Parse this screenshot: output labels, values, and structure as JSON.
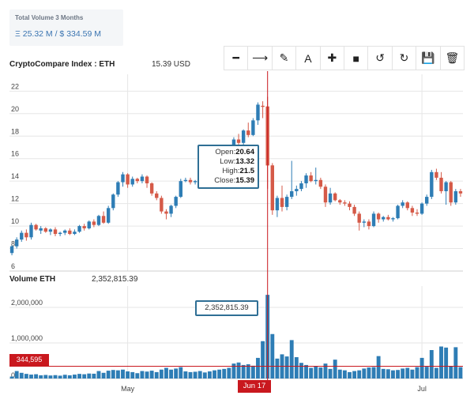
{
  "stats": {
    "total_volume_label": "Total Volume 3 Months",
    "total_volume_value": "Ξ 25.32 M / $ 334.59 M"
  },
  "header": {
    "index_title": "CryptoCompare Index : ETH",
    "index_price": "15.39 USD"
  },
  "toolbar": [
    {
      "name": "minus-icon",
      "glyph": "━"
    },
    {
      "name": "arrow-right-icon",
      "glyph": "⟶"
    },
    {
      "name": "pencil-icon",
      "glyph": "✎"
    },
    {
      "name": "text-icon",
      "glyph": "A"
    },
    {
      "name": "plus-icon",
      "glyph": "✚"
    },
    {
      "name": "square-icon",
      "glyph": "■"
    },
    {
      "name": "undo-icon",
      "glyph": "↺"
    },
    {
      "name": "redo-icon",
      "glyph": "↻"
    },
    {
      "name": "save-icon",
      "glyph": "💾"
    },
    {
      "name": "trash-icon",
      "glyph": "🗑"
    }
  ],
  "volume": {
    "title": "Volume ETH",
    "value": "2,352,815.39",
    "average_label": "344,595"
  },
  "tooltip": {
    "open_label": "Open:",
    "open": "20.64",
    "low_label": "Low:",
    "low": "13.32",
    "high_label": "High:",
    "high": "21.5",
    "close_label": "Close:",
    "close": "15.39",
    "volume": "2,352,815.39"
  },
  "crosshair": {
    "date_label": "Jun 17"
  },
  "colors": {
    "up": "#2e7db5",
    "down": "#d55a48",
    "crosshair": "#c9181e"
  },
  "chart_data": {
    "type": "candlestick",
    "y_ticks": [
      6,
      8,
      10,
      12,
      14,
      16,
      18,
      20,
      22
    ],
    "ylim": [
      6,
      23.5
    ],
    "volume_ticks": [
      {
        "v": 1000000,
        "label": "1,000,000"
      },
      {
        "v": 2000000,
        "label": "2,000,000"
      }
    ],
    "volume_max": 2600000,
    "average_volume": 344595,
    "x_labels": [
      {
        "i": 24,
        "label": "May"
      },
      {
        "i": 85,
        "label": "Jul"
      }
    ],
    "highlight_index": 53,
    "ohlc": [
      [
        7.6,
        8.3,
        7.4,
        8.2
      ],
      [
        8.2,
        9.0,
        8.0,
        8.8
      ],
      [
        8.8,
        9.6,
        8.6,
        9.4
      ],
      [
        9.4,
        9.7,
        8.7,
        9.0
      ],
      [
        9.0,
        10.3,
        8.8,
        10.1
      ],
      [
        10.1,
        10.2,
        9.6,
        9.7
      ],
      [
        9.6,
        10.0,
        9.3,
        9.8
      ],
      [
        9.8,
        9.9,
        9.4,
        9.5
      ],
      [
        9.5,
        9.8,
        9.2,
        9.7
      ],
      [
        9.7,
        9.9,
        9.1,
        9.3
      ],
      [
        9.3,
        9.5,
        9.1,
        9.4
      ],
      [
        9.4,
        9.7,
        9.2,
        9.6
      ],
      [
        9.6,
        9.8,
        9.2,
        9.3
      ],
      [
        9.3,
        9.7,
        9.2,
        9.5
      ],
      [
        9.5,
        10.1,
        9.4,
        10.0
      ],
      [
        10.0,
        10.2,
        9.6,
        9.8
      ],
      [
        9.8,
        10.5,
        9.7,
        10.4
      ],
      [
        10.4,
        10.6,
        9.9,
        10.1
      ],
      [
        10.1,
        11.0,
        10.0,
        10.9
      ],
      [
        10.9,
        11.3,
        10.2,
        10.3
      ],
      [
        10.3,
        11.8,
        10.2,
        11.6
      ],
      [
        11.6,
        12.9,
        11.4,
        12.8
      ],
      [
        12.8,
        14.0,
        12.6,
        13.9
      ],
      [
        13.9,
        14.8,
        13.5,
        14.6
      ],
      [
        14.6,
        14.7,
        13.4,
        13.7
      ],
      [
        13.7,
        14.4,
        13.5,
        14.2
      ],
      [
        14.2,
        14.3,
        13.8,
        14.0
      ],
      [
        14.0,
        14.6,
        13.8,
        14.4
      ],
      [
        14.4,
        14.5,
        13.4,
        13.8
      ],
      [
        13.8,
        13.9,
        12.7,
        12.9
      ],
      [
        12.9,
        13.1,
        12.3,
        12.5
      ],
      [
        12.5,
        12.7,
        11.1,
        11.3
      ],
      [
        11.3,
        11.5,
        10.6,
        11.1
      ],
      [
        11.1,
        11.9,
        10.8,
        11.8
      ],
      [
        11.8,
        12.7,
        11.6,
        12.6
      ],
      [
        12.6,
        14.2,
        12.5,
        14.0
      ],
      [
        14.0,
        14.3,
        13.9,
        14.1
      ],
      [
        14.1,
        14.3,
        13.7,
        13.9
      ],
      [
        13.9,
        14.1,
        13.7,
        14.0
      ],
      [
        14.0,
        14.1,
        13.7,
        13.8
      ],
      [
        13.8,
        14.1,
        13.7,
        14.0
      ],
      [
        14.0,
        14.3,
        13.8,
        13.9
      ],
      [
        13.9,
        14.4,
        13.7,
        14.3
      ],
      [
        14.3,
        14.8,
        14.1,
        14.7
      ],
      [
        14.7,
        15.3,
        14.3,
        14.8
      ],
      [
        14.8,
        16.8,
        14.6,
        16.6
      ],
      [
        16.6,
        17.9,
        16.3,
        17.7
      ],
      [
        17.7,
        18.2,
        17.1,
        17.4
      ],
      [
        17.4,
        18.6,
        17.2,
        18.5
      ],
      [
        18.5,
        19.2,
        17.9,
        18.1
      ],
      [
        18.1,
        19.6,
        18.0,
        19.4
      ],
      [
        19.4,
        21.0,
        19.0,
        20.8
      ],
      [
        20.7,
        21.1,
        19.6,
        20.6
      ],
      [
        20.64,
        21.5,
        13.32,
        15.39
      ],
      [
        15.4,
        15.6,
        11.0,
        11.4
      ],
      [
        11.4,
        12.7,
        10.8,
        12.5
      ],
      [
        12.5,
        13.6,
        11.3,
        11.7
      ],
      [
        11.7,
        12.8,
        11.4,
        12.6
      ],
      [
        12.6,
        15.8,
        12.4,
        13.1
      ],
      [
        13.1,
        13.6,
        12.7,
        13.3
      ],
      [
        13.3,
        14.0,
        13.1,
        13.8
      ],
      [
        13.8,
        14.7,
        13.4,
        14.5
      ],
      [
        14.5,
        14.8,
        13.9,
        14.0
      ],
      [
        14.0,
        15.2,
        13.7,
        14.1
      ],
      [
        14.1,
        14.3,
        13.3,
        13.5
      ],
      [
        13.5,
        13.7,
        11.7,
        12.1
      ],
      [
        12.1,
        13.4,
        11.9,
        12.9
      ],
      [
        12.9,
        13.0,
        12.2,
        12.3
      ],
      [
        12.3,
        12.4,
        11.9,
        12.1
      ],
      [
        12.1,
        12.3,
        11.8,
        12.0
      ],
      [
        12.0,
        12.2,
        11.4,
        11.7
      ],
      [
        11.7,
        11.9,
        10.9,
        11.1
      ],
      [
        11.1,
        11.3,
        9.6,
        10.3
      ],
      [
        10.3,
        10.6,
        9.9,
        10.4
      ],
      [
        10.4,
        10.6,
        9.7,
        10.0
      ],
      [
        10.0,
        11.3,
        9.9,
        11.1
      ],
      [
        11.1,
        11.2,
        10.3,
        10.6
      ],
      [
        10.6,
        10.9,
        10.4,
        10.8
      ],
      [
        10.8,
        11.0,
        10.5,
        10.6
      ],
      [
        10.6,
        10.8,
        10.4,
        10.7
      ],
      [
        10.7,
        11.9,
        10.6,
        11.8
      ],
      [
        11.8,
        12.3,
        11.6,
        12.1
      ],
      [
        12.1,
        12.2,
        11.4,
        11.6
      ],
      [
        11.6,
        11.8,
        10.9,
        11.2
      ],
      [
        11.2,
        11.5,
        10.9,
        11.1
      ],
      [
        11.1,
        12.1,
        11.0,
        12.0
      ],
      [
        12.0,
        12.8,
        11.8,
        12.6
      ],
      [
        12.6,
        15.0,
        12.4,
        14.8
      ],
      [
        14.8,
        15.1,
        14.1,
        14.3
      ],
      [
        14.3,
        14.8,
        12.9,
        13.1
      ],
      [
        13.1,
        14.0,
        11.9,
        13.9
      ],
      [
        13.9,
        14.0,
        11.8,
        12.1
      ],
      [
        12.1,
        13.3,
        11.9,
        13.1
      ],
      [
        13.1,
        13.3,
        12.6,
        12.9
      ]
    ],
    "volumes": [
      55000,
      210000,
      160000,
      130000,
      110000,
      120000,
      90000,
      100000,
      85000,
      95000,
      80000,
      105000,
      90000,
      110000,
      130000,
      120000,
      140000,
      135000,
      210000,
      160000,
      220000,
      240000,
      230000,
      250000,
      200000,
      180000,
      150000,
      210000,
      195000,
      220000,
      180000,
      250000,
      300000,
      250000,
      280000,
      320000,
      200000,
      180000,
      190000,
      210000,
      170000,
      200000,
      230000,
      250000,
      270000,
      300000,
      420000,
      450000,
      380000,
      400000,
      360000,
      580000,
      1050000,
      2352815,
      1250000,
      560000,
      680000,
      620000,
      1080000,
      600000,
      440000,
      380000,
      300000,
      350000,
      310000,
      420000,
      270000,
      530000,
      250000,
      230000,
      180000,
      210000,
      230000,
      280000,
      310000,
      320000,
      630000,
      270000,
      260000,
      230000,
      240000,
      280000,
      300000,
      250000,
      320000,
      580000,
      330000,
      800000,
      300000,
      900000,
      870000,
      350000,
      880000,
      320000
    ]
  }
}
